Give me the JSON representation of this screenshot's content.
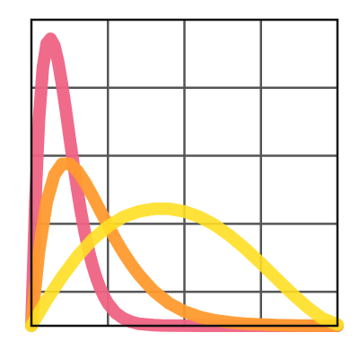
{
  "chart_data": {
    "type": "line",
    "title": "",
    "xlabel": "",
    "ylabel": "",
    "xlim": [
      0,
      4
    ],
    "ylim": [
      0,
      4.5
    ],
    "grid": true,
    "legend": "none",
    "series": [
      {
        "color": "#ef6384",
        "opacity": 0.95,
        "x": [
          0,
          0.05,
          0.1,
          0.15,
          0.2,
          0.25,
          0.3,
          0.35,
          0.4,
          0.45,
          0.5,
          0.55,
          0.6,
          0.65,
          0.7,
          0.75,
          0.8,
          0.85,
          0.9,
          0.95,
          1.0,
          1.1,
          1.2,
          1.3,
          1.4,
          1.5,
          1.6,
          1.7,
          1.8,
          2.0,
          2.2,
          2.5,
          3.0,
          3.5,
          4.0
        ],
        "values": [
          0,
          1.8,
          3.05,
          3.8,
          4.15,
          4.22,
          4.12,
          3.88,
          3.55,
          3.17,
          2.76,
          2.37,
          2.0,
          1.66,
          1.36,
          1.1,
          0.88,
          0.7,
          0.55,
          0.43,
          0.33,
          0.19,
          0.11,
          0.06,
          0.03,
          0.02,
          0.01,
          0.005,
          0.003,
          0.001,
          0,
          0,
          0,
          0,
          0
        ]
      },
      {
        "color": "#ff9a2e",
        "opacity": 0.95,
        "x": [
          0,
          0.1,
          0.2,
          0.3,
          0.4,
          0.5,
          0.6,
          0.7,
          0.8,
          0.9,
          1.0,
          1.1,
          1.2,
          1.3,
          1.4,
          1.5,
          1.6,
          1.8,
          2.0,
          2.2,
          2.4,
          2.6,
          2.8,
          3.0,
          3.2,
          3.5,
          4.0
        ],
        "values": [
          0,
          1.1,
          1.82,
          2.22,
          2.38,
          2.38,
          2.28,
          2.11,
          1.91,
          1.69,
          1.48,
          1.27,
          1.08,
          0.91,
          0.76,
          0.63,
          0.51,
          0.33,
          0.21,
          0.13,
          0.08,
          0.05,
          0.03,
          0.02,
          0.01,
          0.004,
          0.001
        ]
      },
      {
        "color": "#ffdf24",
        "opacity": 0.9,
        "x": [
          0,
          0.2,
          0.4,
          0.6,
          0.8,
          1.0,
          1.2,
          1.4,
          1.6,
          1.8,
          2.0,
          2.2,
          2.4,
          2.6,
          2.8,
          3.0,
          3.2,
          3.4,
          3.6,
          3.8,
          4.0
        ],
        "values": [
          0,
          0.38,
          0.72,
          1.02,
          1.27,
          1.46,
          1.6,
          1.68,
          1.72,
          1.72,
          1.68,
          1.6,
          1.48,
          1.32,
          1.13,
          0.92,
          0.7,
          0.48,
          0.28,
          0.11,
          0.02
        ]
      }
    ]
  }
}
